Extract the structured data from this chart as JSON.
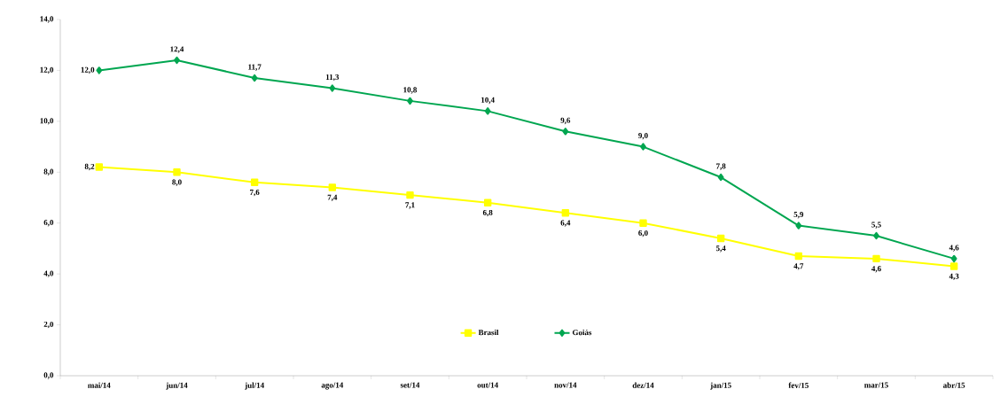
{
  "chart_data": {
    "type": "line",
    "categories": [
      "mai/14",
      "jun/14",
      "jul/14",
      "ago/14",
      "set/14",
      "out/14",
      "nov/14",
      "dez/14",
      "jan/15",
      "fev/15",
      "mar/15",
      "abr/15"
    ],
    "series": [
      {
        "name": "Brasil",
        "color": "#ffff00",
        "marker": "square",
        "values": [
          8.2,
          8.0,
          7.6,
          7.4,
          7.1,
          6.8,
          6.4,
          6.0,
          5.4,
          4.7,
          4.6,
          4.3
        ],
        "value_labels": [
          "8,2",
          "8,0",
          "7,6",
          "7,4",
          "7,1",
          "6,8",
          "6,4",
          "6,0",
          "5,4",
          "4,7",
          "4,6",
          "4,3"
        ]
      },
      {
        "name": "Goiás",
        "color": "#00a650",
        "marker": "diamond",
        "values": [
          12.0,
          12.4,
          11.7,
          11.3,
          10.8,
          10.4,
          9.6,
          9.0,
          7.8,
          5.9,
          5.5,
          4.6
        ],
        "value_labels": [
          "12,0",
          "12,4",
          "11,7",
          "11,3",
          "10,8",
          "10,4",
          "9,6",
          "9,0",
          "7,8",
          "5,9",
          "5,5",
          "4,6"
        ]
      }
    ],
    "ylim": [
      0,
      14
    ],
    "yticks": [
      {
        "value": 0,
        "label": "0,0"
      },
      {
        "value": 2,
        "label": "2,0"
      },
      {
        "value": 4,
        "label": "4,0"
      },
      {
        "value": 6,
        "label": "6,0"
      },
      {
        "value": 8,
        "label": "8,0"
      },
      {
        "value": 10,
        "label": "10,0"
      },
      {
        "value": 12,
        "label": "12,0"
      },
      {
        "value": 14,
        "label": "14,0"
      }
    ],
    "grid": false,
    "legend": "bottom",
    "line_style": "solid"
  }
}
